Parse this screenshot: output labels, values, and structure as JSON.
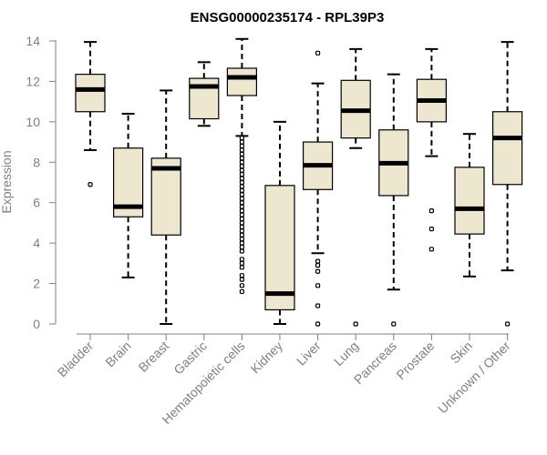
{
  "chart_data": {
    "type": "boxplot",
    "title": "ENSG00000235174 - RPL39P3",
    "xlabel": "",
    "ylabel": "Expression",
    "ylim": [
      0,
      14
    ],
    "yticks": [
      0,
      2,
      4,
      6,
      8,
      10,
      12,
      14
    ],
    "grid": false,
    "colors": {
      "box_fill": "#ede7d0",
      "box_stroke": "#000000",
      "axis": "#808080",
      "label": "#808080"
    },
    "categories": [
      "Bladder",
      "Brain",
      "Breast",
      "Gastric",
      "Hematopoietic cells",
      "Kidney",
      "Liver",
      "Lung",
      "Pancreas",
      "Prostate",
      "Skin",
      "Unknown / Other"
    ],
    "series": [
      {
        "name": "Bladder",
        "q1": 10.5,
        "median": 11.6,
        "q3": 12.35,
        "whisker_low": 8.6,
        "whisker_high": 13.95,
        "outliers": [
          6.9
        ]
      },
      {
        "name": "Brain",
        "q1": 5.3,
        "median": 5.8,
        "q3": 8.7,
        "whisker_low": 2.3,
        "whisker_high": 10.4,
        "outliers": []
      },
      {
        "name": "Breast",
        "q1": 4.4,
        "median": 7.7,
        "q3": 8.2,
        "whisker_low": 0.0,
        "whisker_high": 11.55,
        "outliers": []
      },
      {
        "name": "Gastric",
        "q1": 10.15,
        "median": 11.75,
        "q3": 12.15,
        "whisker_low": 9.8,
        "whisker_high": 12.95,
        "outliers": []
      },
      {
        "name": "Hematopoietic cells",
        "q1": 11.3,
        "median": 12.2,
        "q3": 12.65,
        "whisker_low": 9.3,
        "whisker_high": 14.1,
        "outliers": [
          9.2,
          9.0,
          8.8,
          8.6,
          8.4,
          8.2,
          8.0,
          7.8,
          7.6,
          7.4,
          7.2,
          7.0,
          6.8,
          6.6,
          6.4,
          6.2,
          6.0,
          5.8,
          5.6,
          5.4,
          5.2,
          5.0,
          4.8,
          4.6,
          4.4,
          4.2,
          4.0,
          3.8,
          3.6,
          3.2,
          3.0,
          2.8,
          2.4,
          2.2,
          1.9,
          1.6
        ]
      },
      {
        "name": "Kidney",
        "q1": 0.7,
        "median": 1.5,
        "q3": 6.85,
        "whisker_low": 0.0,
        "whisker_high": 10.0,
        "outliers": []
      },
      {
        "name": "Liver",
        "q1": 6.65,
        "median": 7.85,
        "q3": 9.0,
        "whisker_low": 3.5,
        "whisker_high": 11.9,
        "outliers": [
          13.4,
          3.1,
          2.9,
          2.6,
          1.9,
          0.9,
          0.0
        ]
      },
      {
        "name": "Lung",
        "q1": 9.2,
        "median": 10.55,
        "q3": 12.05,
        "whisker_low": 8.7,
        "whisker_high": 13.6,
        "outliers": [
          0.0
        ]
      },
      {
        "name": "Pancreas",
        "q1": 6.35,
        "median": 7.95,
        "q3": 9.6,
        "whisker_low": 1.7,
        "whisker_high": 12.35,
        "outliers": [
          0.0
        ]
      },
      {
        "name": "Prostate",
        "q1": 10.0,
        "median": 11.05,
        "q3": 12.1,
        "whisker_low": 8.3,
        "whisker_high": 13.6,
        "outliers": [
          5.6,
          4.7,
          3.7
        ]
      },
      {
        "name": "Skin",
        "q1": 4.45,
        "median": 5.7,
        "q3": 7.75,
        "whisker_low": 2.35,
        "whisker_high": 9.4,
        "outliers": []
      },
      {
        "name": "Unknown / Other",
        "q1": 6.9,
        "median": 9.2,
        "q3": 10.5,
        "whisker_low": 2.65,
        "whisker_high": 13.95,
        "outliers": [
          0.0
        ]
      }
    ]
  }
}
